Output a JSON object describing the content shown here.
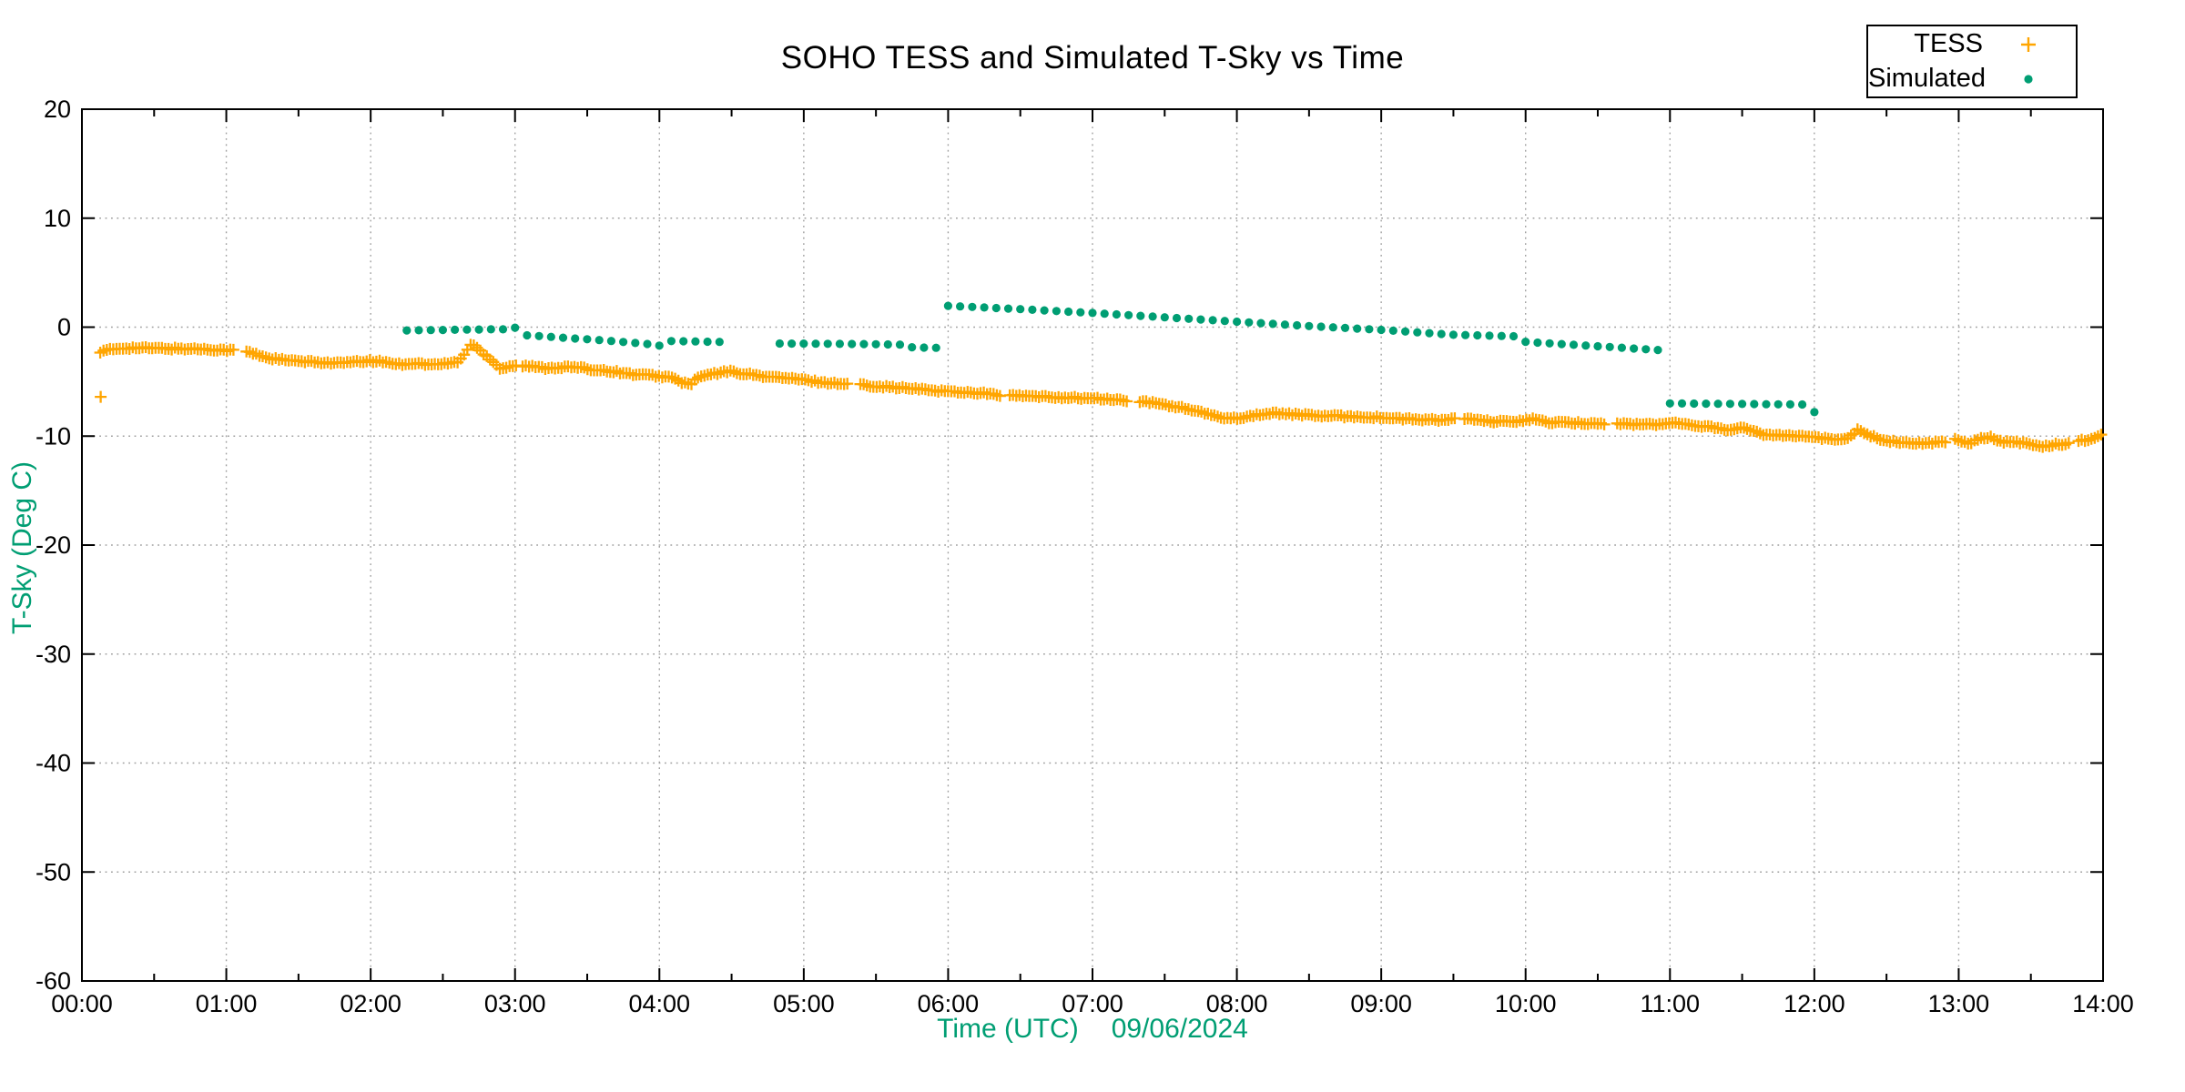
{
  "chart_data": {
    "type": "scatter",
    "title": "SOHO TESS and Simulated T-Sky vs Time",
    "ylabel": "T-Sky (Deg C)",
    "xlabel": "Time (UTC)",
    "date_label": "09/06/2024",
    "xlim_hours": [
      0,
      14
    ],
    "ylim": [
      -60,
      20
    ],
    "grid": "dotted",
    "grid_color": "#A0A0A0",
    "axis_color": "#000000",
    "background_color": "#FFFFFF",
    "x_ticks": [
      {
        "t": 0,
        "label": "00:00"
      },
      {
        "t": 1,
        "label": "01:00"
      },
      {
        "t": 2,
        "label": "02:00"
      },
      {
        "t": 3,
        "label": "03:00"
      },
      {
        "t": 4,
        "label": "04:00"
      },
      {
        "t": 5,
        "label": "05:00"
      },
      {
        "t": 6,
        "label": "06:00"
      },
      {
        "t": 7,
        "label": "07:00"
      },
      {
        "t": 8,
        "label": "08:00"
      },
      {
        "t": 9,
        "label": "09:00"
      },
      {
        "t": 10,
        "label": "10:00"
      },
      {
        "t": 11,
        "label": "11:00"
      },
      {
        "t": 12,
        "label": "12:00"
      },
      {
        "t": 13,
        "label": "13:00"
      },
      {
        "t": 14,
        "label": "14:00"
      }
    ],
    "minor_x_interval_hours": 0.5,
    "y_ticks": [
      {
        "v": 20,
        "label": "20"
      },
      {
        "v": 10,
        "label": "10"
      },
      {
        "v": 0,
        "label": "0"
      },
      {
        "v": -10,
        "label": "-10"
      },
      {
        "v": -20,
        "label": "-20"
      },
      {
        "v": -30,
        "label": "-30"
      },
      {
        "v": -40,
        "label": "-40"
      },
      {
        "v": -50,
        "label": "-50"
      },
      {
        "v": -60,
        "label": "-60"
      }
    ],
    "legend": {
      "position": "above-plot-right",
      "items": [
        {
          "label": "TESS",
          "marker": "plus",
          "color": "#FFA500"
        },
        {
          "label": "Simulated",
          "marker": "dot",
          "color": "#009E73"
        }
      ]
    },
    "series": [
      {
        "name": "TESS",
        "marker": "plus",
        "color": "#FFA500",
        "marker_size_px": 13,
        "sample_step_hours": 0.0225,
        "jitter_deg": 0.1,
        "anchors": [
          [
            0.127,
            -2.3
          ],
          [
            0.18,
            -2.1
          ],
          [
            0.3,
            -1.9
          ],
          [
            0.55,
            -1.95
          ],
          [
            0.8,
            -2.0
          ],
          [
            1.0,
            -2.1
          ],
          [
            1.13,
            -2.2
          ],
          [
            1.3,
            -2.85
          ],
          [
            1.45,
            -3.1
          ],
          [
            1.6,
            -3.2
          ],
          [
            1.78,
            -3.3
          ],
          [
            1.9,
            -3.2
          ],
          [
            2.0,
            -3.1
          ],
          [
            2.1,
            -3.2
          ],
          [
            2.2,
            -3.4
          ],
          [
            2.3,
            -3.3
          ],
          [
            2.42,
            -3.45
          ],
          [
            2.52,
            -3.35
          ],
          [
            2.6,
            -3.2
          ],
          [
            2.65,
            -2.5
          ],
          [
            2.7,
            -1.45
          ],
          [
            2.75,
            -2.1
          ],
          [
            2.8,
            -2.6
          ],
          [
            2.85,
            -3.15
          ],
          [
            2.9,
            -3.85
          ],
          [
            2.95,
            -3.6
          ],
          [
            3.0,
            -3.5
          ],
          [
            3.1,
            -3.6
          ],
          [
            3.2,
            -3.75
          ],
          [
            3.3,
            -3.7
          ],
          [
            3.4,
            -3.65
          ],
          [
            3.5,
            -3.85
          ],
          [
            3.65,
            -4.0
          ],
          [
            3.8,
            -4.3
          ],
          [
            3.95,
            -4.45
          ],
          [
            4.08,
            -4.6
          ],
          [
            4.16,
            -5.1
          ],
          [
            4.22,
            -5.2
          ],
          [
            4.27,
            -4.6
          ],
          [
            4.35,
            -4.35
          ],
          [
            4.48,
            -4.05
          ],
          [
            4.6,
            -4.3
          ],
          [
            4.75,
            -4.55
          ],
          [
            4.9,
            -4.7
          ],
          [
            5.0,
            -4.85
          ],
          [
            5.15,
            -5.1
          ],
          [
            5.3,
            -5.2
          ],
          [
            5.45,
            -5.35
          ],
          [
            5.6,
            -5.5
          ],
          [
            5.75,
            -5.65
          ],
          [
            5.9,
            -5.8
          ],
          [
            6.0,
            -5.9
          ],
          [
            6.15,
            -6.0
          ],
          [
            6.25,
            -6.05
          ],
          [
            6.35,
            -6.3
          ],
          [
            6.5,
            -6.3
          ],
          [
            6.65,
            -6.4
          ],
          [
            6.8,
            -6.45
          ],
          [
            7.0,
            -6.55
          ],
          [
            7.15,
            -6.65
          ],
          [
            7.3,
            -6.8
          ],
          [
            7.45,
            -7.0
          ],
          [
            7.6,
            -7.35
          ],
          [
            7.72,
            -7.7
          ],
          [
            7.85,
            -8.2
          ],
          [
            7.95,
            -8.35
          ],
          [
            8.05,
            -8.3
          ],
          [
            8.15,
            -8.0
          ],
          [
            8.3,
            -7.9
          ],
          [
            8.45,
            -8.05
          ],
          [
            8.6,
            -8.15
          ],
          [
            8.8,
            -8.2
          ],
          [
            9.0,
            -8.3
          ],
          [
            9.2,
            -8.45
          ],
          [
            9.4,
            -8.55
          ],
          [
            9.55,
            -8.35
          ],
          [
            9.7,
            -8.6
          ],
          [
            9.85,
            -8.7
          ],
          [
            9.97,
            -8.6
          ],
          [
            10.05,
            -8.4
          ],
          [
            10.15,
            -8.75
          ],
          [
            10.35,
            -8.8
          ],
          [
            10.55,
            -8.85
          ],
          [
            10.75,
            -8.9
          ],
          [
            10.95,
            -8.95
          ],
          [
            11.04,
            -8.65
          ],
          [
            11.12,
            -9.0
          ],
          [
            11.25,
            -9.1
          ],
          [
            11.38,
            -9.35
          ],
          [
            11.44,
            -9.45
          ],
          [
            11.5,
            -9.25
          ],
          [
            11.58,
            -9.55
          ],
          [
            11.65,
            -9.85
          ],
          [
            11.8,
            -9.9
          ],
          [
            11.95,
            -10.0
          ],
          [
            12.05,
            -10.2
          ],
          [
            12.18,
            -10.35
          ],
          [
            12.24,
            -10.1
          ],
          [
            12.3,
            -9.4
          ],
          [
            12.38,
            -9.9
          ],
          [
            12.48,
            -10.45
          ],
          [
            12.6,
            -10.55
          ],
          [
            12.75,
            -10.65
          ],
          [
            12.9,
            -10.55
          ],
          [
            12.97,
            -10.15
          ],
          [
            13.02,
            -10.55
          ],
          [
            13.08,
            -10.6
          ],
          [
            13.15,
            -10.2
          ],
          [
            13.22,
            -10.1
          ],
          [
            13.3,
            -10.5
          ],
          [
            13.45,
            -10.6
          ],
          [
            13.55,
            -10.95
          ],
          [
            13.65,
            -10.8
          ],
          [
            13.75,
            -10.7
          ],
          [
            13.85,
            -10.4
          ],
          [
            13.93,
            -10.25
          ],
          [
            14.0,
            -9.7
          ]
        ],
        "gaps": [
          [
            1.07,
            1.125
          ],
          [
            3.01,
            3.05
          ],
          [
            5.32,
            5.38
          ],
          [
            6.37,
            6.42
          ],
          [
            7.25,
            7.31
          ],
          [
            9.51,
            9.57
          ],
          [
            10.56,
            10.62
          ],
          [
            12.91,
            12.96
          ],
          [
            13.77,
            13.82
          ]
        ],
        "outliers": [
          [
            0.13,
            -6.4
          ]
        ]
      },
      {
        "name": "Simulated",
        "marker": "dot",
        "color": "#009E73",
        "dot_radius_px": 4.6,
        "dot_interval_hours": 0.08333,
        "segments": [
          {
            "anchors": [
              [
                2.25,
                -0.3
              ],
              [
                2.83,
                -0.2
              ],
              [
                2.92,
                -0.2
              ],
              [
                3.0,
                -0.05
              ]
            ]
          },
          {
            "anchors": [
              [
                3.083,
                -0.75
              ],
              [
                3.6,
                -1.2
              ],
              [
                3.92,
                -1.55
              ],
              [
                4.0,
                -1.7
              ],
              [
                4.083,
                -1.28
              ],
              [
                4.417,
                -1.35
              ]
            ]
          },
          {
            "anchors": [
              [
                4.833,
                -1.5
              ],
              [
                5.4,
                -1.55
              ],
              [
                5.667,
                -1.6
              ],
              [
                5.75,
                -1.85
              ],
              [
                5.917,
                -1.9
              ]
            ]
          },
          {
            "anchors": [
              [
                6.0,
                1.95
              ],
              [
                6.5,
                1.65
              ],
              [
                7.0,
                1.3
              ],
              [
                7.5,
                0.9
              ],
              [
                8.0,
                0.5
              ],
              [
                8.5,
                0.1
              ],
              [
                9.0,
                -0.25
              ],
              [
                9.5,
                -0.7
              ],
              [
                9.95,
                -0.85
              ],
              [
                10.0,
                -1.35
              ],
              [
                10.5,
                -1.75
              ],
              [
                10.917,
                -2.1
              ]
            ]
          },
          {
            "anchors": [
              [
                11.0,
                -7.0
              ],
              [
                11.5,
                -7.05
              ],
              [
                11.917,
                -7.1
              ]
            ]
          },
          {
            "anchors": [
              [
                12.0,
                -7.8
              ],
              [
                12.083,
                -7.85
              ]
            ]
          }
        ]
      }
    ]
  }
}
